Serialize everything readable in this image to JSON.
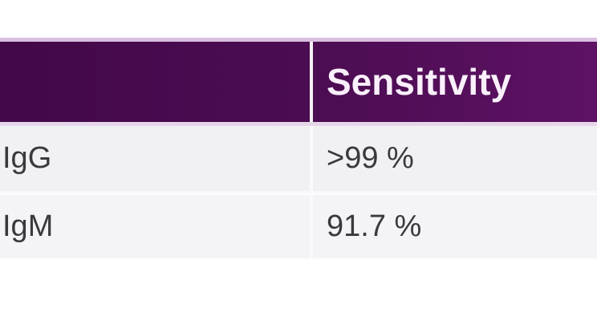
{
  "table": {
    "columns": [
      {
        "label": ""
      },
      {
        "label": "Sensitivity"
      }
    ],
    "rows": [
      {
        "antibody": "IgG",
        "sensitivity": ">99 %"
      },
      {
        "antibody": "IgM",
        "sensitivity": "91.7 %"
      }
    ]
  },
  "colors": {
    "header-grad-left": "#420849",
    "header-grad-mid": "#4c0d52",
    "header-grad-right": "#5e1264",
    "header-text": "#f9f0fb",
    "header-border-top": "#d9bfdf",
    "header-border-bottom": "#e7d6ea",
    "row1-bg": "#f1f1f3",
    "row2-bg": "#f4f4f6",
    "body-text": "#3a3a3c",
    "divider": "#ffffff"
  },
  "chart_data": {
    "type": "table",
    "title": "",
    "columns": [
      "",
      "Sensitivity"
    ],
    "rows": [
      [
        "IgG",
        ">99 %"
      ],
      [
        "IgM",
        "91.7 %"
      ]
    ]
  }
}
